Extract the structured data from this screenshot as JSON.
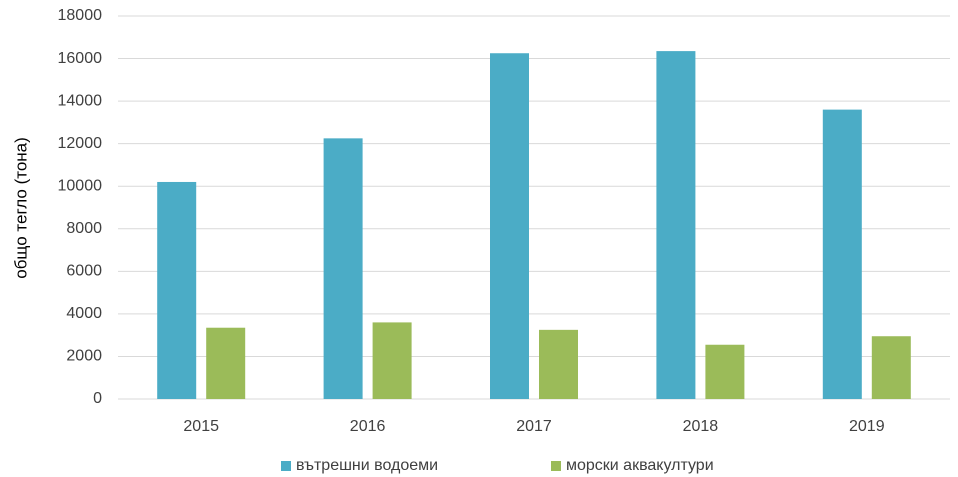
{
  "chart_data": {
    "type": "bar",
    "y_label": "общо тегло (тона)",
    "categories": [
      "2015",
      "2016",
      "2017",
      "2018",
      "2019"
    ],
    "series": [
      {
        "name": "вътрешни водоеми",
        "color": "#4bacc6",
        "values": [
          10200,
          12250,
          16250,
          16350,
          13600
        ]
      },
      {
        "name": "морски аквакултури",
        "color": "#9bbb59",
        "values": [
          3350,
          3600,
          3250,
          2550,
          2950
        ]
      }
    ],
    "ylim": [
      0,
      18000
    ],
    "yticks": [
      0,
      2000,
      4000,
      6000,
      8000,
      10000,
      12000,
      14000,
      16000,
      18000
    ],
    "grid": true,
    "legend": "bottom"
  }
}
